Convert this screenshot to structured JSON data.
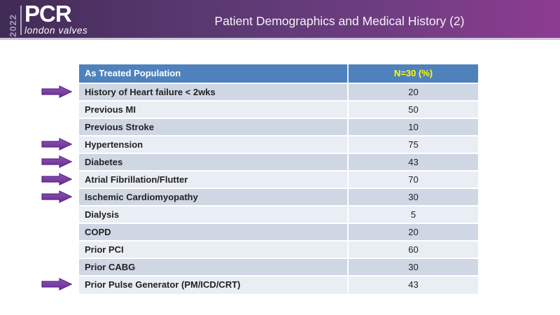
{
  "banner": {
    "logo": {
      "year": "2022",
      "brand": "PCR",
      "tagline": "london valves"
    },
    "title": "Patient Demographics and Medical History (2)"
  },
  "table": {
    "columns": [
      "As Treated Population",
      "N=30 (%)"
    ],
    "rows": [
      {
        "label": "History of Heart failure < 2wks",
        "value": "20",
        "arrow": true
      },
      {
        "label": "Previous MI",
        "value": "50",
        "arrow": false
      },
      {
        "label": "Previous Stroke",
        "value": "10",
        "arrow": false
      },
      {
        "label": "Hypertension",
        "value": "75",
        "arrow": true
      },
      {
        "label": "Diabetes",
        "value": "43",
        "arrow": true
      },
      {
        "label": "Atrial Fibrillation/Flutter",
        "value": "70",
        "arrow": true
      },
      {
        "label": "Ischemic Cardiomyopathy",
        "value": "30",
        "arrow": true
      },
      {
        "label": "Dialysis",
        "value": "5",
        "arrow": false
      },
      {
        "label": "COPD",
        "value": "20",
        "arrow": false
      },
      {
        "label": "Prior PCI",
        "value": "60",
        "arrow": false
      },
      {
        "label": "Prior CABG",
        "value": "30",
        "arrow": false
      },
      {
        "label": "Prior Pulse Generator (PM/ICD/CRT)",
        "value": "43",
        "arrow": true
      }
    ]
  },
  "colors": {
    "banner_gradient_left": "#402b55",
    "banner_gradient_right": "#8d3c90",
    "banner_bottom_border": "#cdc5d8",
    "header_bg": "#4f81bd",
    "header_text": "#ffffff",
    "header_value_text": "#ffff00",
    "row_band_dark": "#cfd6e4",
    "row_band_light": "#e9edf4",
    "body_text": "#222222",
    "arrow_fill": "#7030a0"
  },
  "chart_data": {
    "type": "table",
    "title": "Patient Demographics and Medical History (2)",
    "columns": [
      "As Treated Population",
      "N=30 (%)"
    ],
    "categories": [
      "History of Heart failure < 2wks",
      "Previous MI",
      "Previous Stroke",
      "Hypertension",
      "Diabetes",
      "Atrial Fibrillation/Flutter",
      "Ischemic Cardiomyopathy",
      "Dialysis",
      "COPD",
      "Prior PCI",
      "Prior CABG",
      "Prior Pulse Generator (PM/ICD/CRT)"
    ],
    "values": [
      20,
      50,
      10,
      75,
      43,
      70,
      30,
      5,
      20,
      60,
      30,
      43
    ],
    "highlighted_rows": [
      "History of Heart failure < 2wks",
      "Hypertension",
      "Diabetes",
      "Atrial Fibrillation/Flutter",
      "Ischemic Cardiomyopathy",
      "Prior Pulse Generator (PM/ICD/CRT)"
    ]
  }
}
